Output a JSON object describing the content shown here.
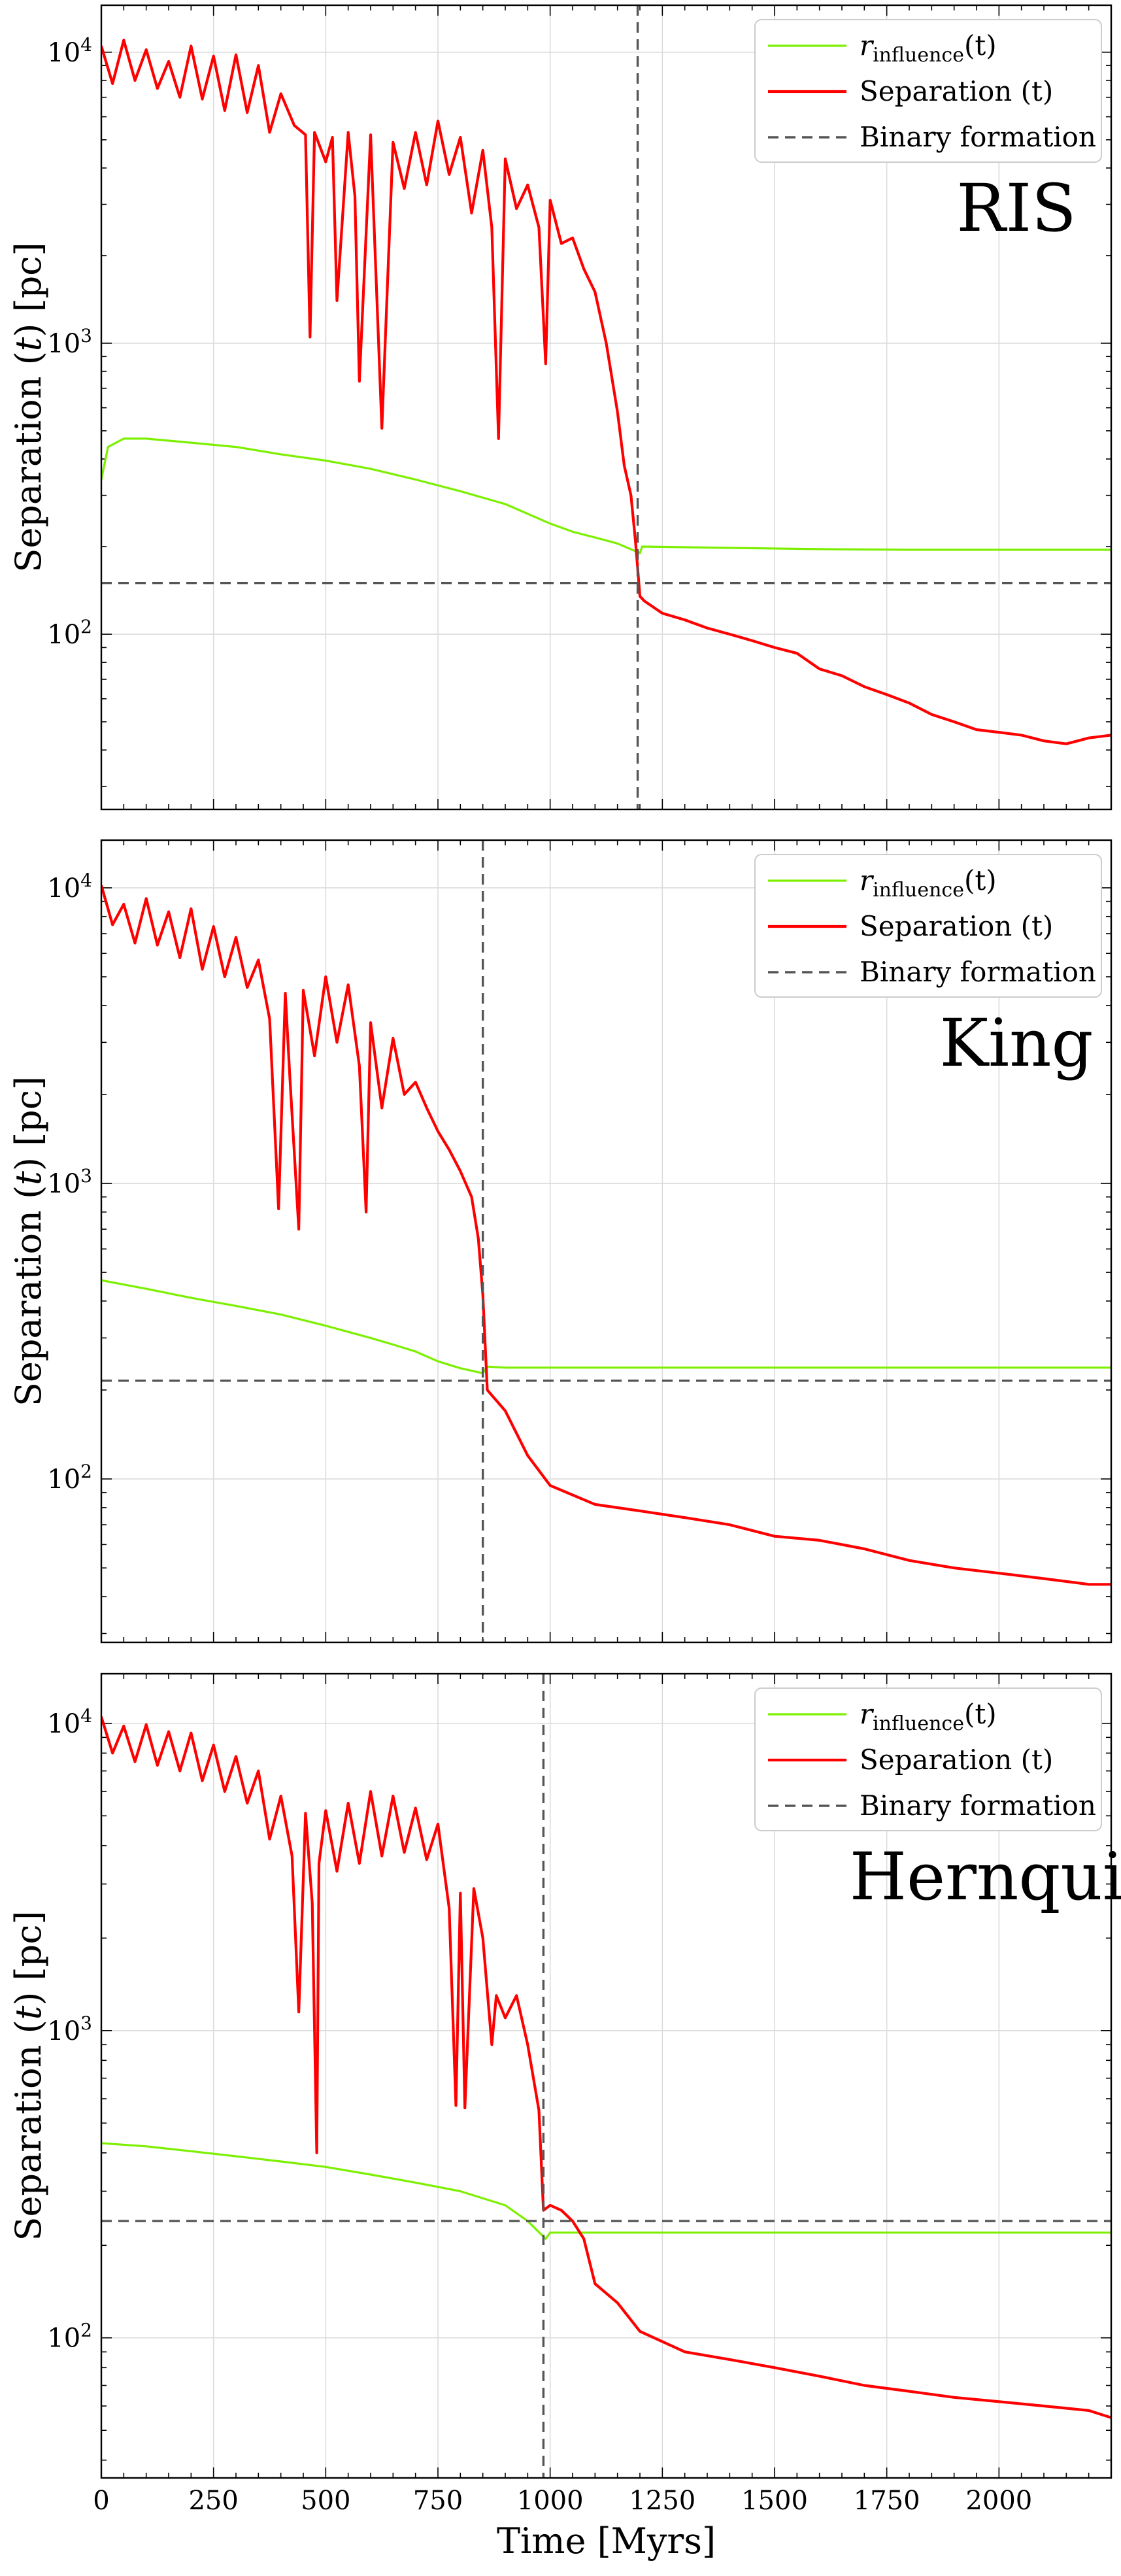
{
  "colors": {
    "r_influence": "#7cf000",
    "separation": "#ff0000",
    "binary_formation": "#555555",
    "grid": "#dcdcdc"
  },
  "chart_data": [
    {
      "type": "line",
      "panel_title": "RIS",
      "ylabel": "Separation (t) [pc]",
      "xlabel": "",
      "xlim": [
        0,
        2250
      ],
      "ylim": [
        25,
        14500
      ],
      "yscale": "log",
      "grid": true,
      "legend": "top-right",
      "legend_entries": [
        "r_influence(t)",
        "Separation (t)",
        "Binary formation"
      ],
      "series": [
        {
          "name": "r_influence(t)",
          "x": [
            0,
            15,
            50,
            100,
            200,
            300,
            400,
            500,
            600,
            700,
            800,
            900,
            1000,
            1050,
            1100,
            1150,
            1200,
            1205,
            1400,
            1600,
            1800,
            2000,
            2250
          ],
          "y": [
            340,
            440,
            470,
            470,
            455,
            440,
            415,
            395,
            370,
            340,
            310,
            280,
            240,
            225,
            215,
            205,
            190,
            200,
            198,
            196,
            195,
            195,
            195
          ]
        },
        {
          "name": "Separation (t)",
          "x": [
            0,
            25,
            50,
            75,
            100,
            125,
            150,
            175,
            200,
            225,
            250,
            275,
            300,
            325,
            350,
            375,
            400,
            430,
            455,
            465,
            475,
            500,
            515,
            525,
            550,
            565,
            575,
            600,
            625,
            650,
            675,
            700,
            725,
            750,
            775,
            800,
            825,
            850,
            870,
            885,
            900,
            925,
            950,
            975,
            990,
            1000,
            1025,
            1050,
            1075,
            1100,
            1125,
            1150,
            1165,
            1180,
            1190,
            1200,
            1210,
            1250,
            1300,
            1350,
            1400,
            1450,
            1500,
            1550,
            1600,
            1650,
            1700,
            1750,
            1800,
            1850,
            1900,
            1950,
            2000,
            2050,
            2100,
            2150,
            2200,
            2250
          ],
          "y": [
            10500,
            7800,
            11000,
            8000,
            10200,
            7500,
            9300,
            7000,
            10500,
            6900,
            9700,
            6300,
            9800,
            6200,
            9000,
            5300,
            7200,
            5600,
            5200,
            1050,
            5300,
            4200,
            5100,
            1400,
            5300,
            3200,
            740,
            5200,
            510,
            4900,
            3400,
            5300,
            3500,
            5800,
            3800,
            5100,
            2800,
            4600,
            2500,
            470,
            4300,
            2900,
            3500,
            2500,
            850,
            3100,
            2200,
            2300,
            1800,
            1500,
            1000,
            580,
            380,
            300,
            210,
            135,
            130,
            118,
            112,
            105,
            100,
            95,
            90,
            86,
            76,
            72,
            66,
            62,
            58,
            53,
            50,
            47,
            46,
            45,
            43,
            42,
            44,
            45
          ]
        }
      ],
      "binary_formation": {
        "time": 1195,
        "separation": 150
      }
    },
    {
      "type": "line",
      "panel_title": "King",
      "ylabel": "Separation (t) [pc]",
      "xlabel": "",
      "xlim": [
        0,
        2250
      ],
      "ylim": [
        28,
        14500
      ],
      "yscale": "log",
      "grid": true,
      "legend": "top-right",
      "legend_entries": [
        "r_influence(t)",
        "Separation (t)",
        "Binary formation"
      ],
      "series": [
        {
          "name": "r_influence(t)",
          "x": [
            0,
            100,
            200,
            300,
            400,
            500,
            600,
            650,
            700,
            750,
            800,
            850,
            860,
            900,
            1000,
            1200,
            1400,
            1600,
            1800,
            2000,
            2250
          ],
          "y": [
            470,
            440,
            410,
            385,
            360,
            330,
            300,
            285,
            270,
            250,
            237,
            228,
            240,
            238,
            238,
            238,
            238,
            238,
            238,
            238,
            238
          ]
        },
        {
          "name": "Separation (t)",
          "x": [
            0,
            25,
            50,
            75,
            100,
            125,
            150,
            175,
            200,
            225,
            250,
            275,
            300,
            325,
            350,
            375,
            395,
            410,
            420,
            440,
            450,
            475,
            500,
            525,
            550,
            575,
            590,
            600,
            625,
            650,
            675,
            700,
            725,
            750,
            775,
            800,
            825,
            840,
            850,
            860,
            900,
            950,
            1000,
            1100,
            1200,
            1300,
            1400,
            1500,
            1600,
            1700,
            1800,
            1900,
            2000,
            2100,
            2200,
            2250
          ],
          "y": [
            10200,
            7500,
            8800,
            6500,
            9200,
            6400,
            8300,
            5800,
            8500,
            5300,
            7400,
            5000,
            6800,
            4600,
            5700,
            3600,
            820,
            4400,
            2300,
            700,
            4500,
            2700,
            5000,
            3000,
            4700,
            2500,
            800,
            3500,
            1800,
            3100,
            2000,
            2200,
            1800,
            1500,
            1300,
            1100,
            900,
            650,
            420,
            200,
            170,
            120,
            95,
            82,
            78,
            74,
            70,
            64,
            62,
            58,
            53,
            50,
            48,
            46,
            44,
            44
          ]
        }
      ],
      "binary_formation": {
        "time": 850,
        "separation": 215
      }
    },
    {
      "type": "line",
      "panel_title": "Hernquist",
      "ylabel": "Separation (t) [pc]",
      "xlabel": "Time [Myrs]",
      "xlim": [
        0,
        2250
      ],
      "ylim": [
        35,
        14500
      ],
      "yscale": "log",
      "grid": true,
      "legend": "top-right",
      "legend_entries": [
        "r_influence(t)",
        "Separation (t)",
        "Binary formation"
      ],
      "x_ticks": [
        0,
        250,
        500,
        750,
        1000,
        1250,
        1500,
        1750,
        2000
      ],
      "series": [
        {
          "name": "r_influence(t)",
          "x": [
            0,
            100,
            200,
            300,
            400,
            500,
            600,
            700,
            800,
            900,
            950,
            990,
            1000,
            1100,
            1300,
            1500,
            1700,
            1900,
            2100,
            2250
          ],
          "y": [
            430,
            420,
            405,
            390,
            375,
            360,
            340,
            320,
            300,
            270,
            240,
            210,
            220,
            220,
            220,
            220,
            220,
            220,
            220,
            220
          ]
        },
        {
          "name": "Separation (t)",
          "x": [
            0,
            25,
            50,
            75,
            100,
            125,
            150,
            175,
            200,
            225,
            250,
            275,
            300,
            325,
            350,
            375,
            400,
            425,
            440,
            455,
            470,
            480,
            485,
            500,
            525,
            550,
            575,
            600,
            625,
            650,
            675,
            700,
            725,
            750,
            775,
            790,
            800,
            810,
            830,
            850,
            870,
            880,
            900,
            925,
            950,
            975,
            985,
            1000,
            1025,
            1050,
            1075,
            1100,
            1150,
            1200,
            1300,
            1400,
            1500,
            1600,
            1700,
            1800,
            1900,
            2000,
            2100,
            2200,
            2250
          ],
          "y": [
            10500,
            8000,
            9800,
            7500,
            9900,
            7300,
            9400,
            7000,
            9300,
            6500,
            8500,
            6000,
            7800,
            5500,
            7000,
            4200,
            5800,
            3700,
            1150,
            5100,
            2600,
            400,
            3500,
            5200,
            3300,
            5500,
            3500,
            6000,
            3700,
            5800,
            3800,
            5300,
            3600,
            4700,
            2500,
            570,
            2800,
            560,
            2900,
            2000,
            900,
            1300,
            1100,
            1300,
            900,
            550,
            260,
            270,
            260,
            240,
            210,
            150,
            130,
            105,
            90,
            85,
            80,
            75,
            70,
            67,
            64,
            62,
            60,
            58,
            55
          ]
        }
      ],
      "binary_formation": {
        "time": 985,
        "separation": 240
      }
    }
  ],
  "legend": {
    "r_influence_label_main": "r",
    "r_influence_label_sub": "influence",
    "r_influence_label_tail": "(t)",
    "separation_label": "Separation (t)",
    "binary_label": "Binary formation"
  },
  "axes": {
    "ylabel_main": "Separation (",
    "ylabel_t": "t",
    "ylabel_tail": ") [pc]",
    "xlabel": "Time [Myrs]",
    "ytick_base": "10",
    "ytick_exponents": [
      "2",
      "3",
      "4"
    ]
  }
}
